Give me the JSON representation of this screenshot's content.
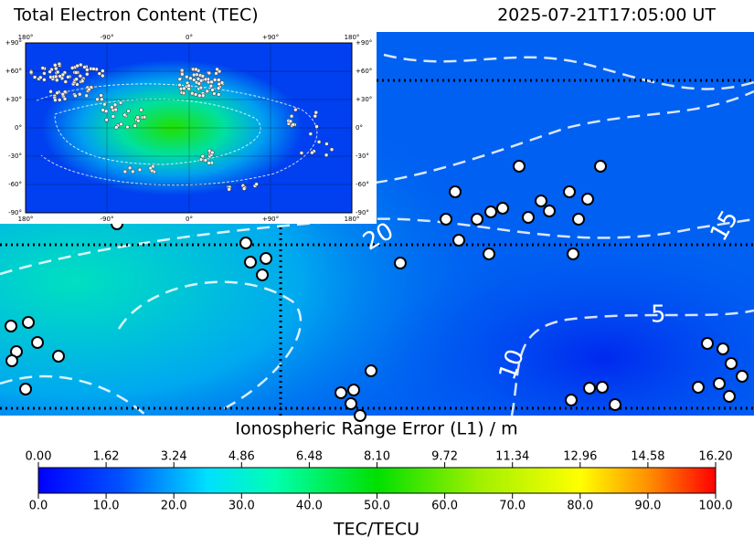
{
  "header": {
    "title": "Total Electron Content (TEC)",
    "timestamp": "2025-07-21T17:05:00 UT"
  },
  "map": {
    "contour_labels": [
      "20",
      "15",
      "5",
      "10"
    ]
  },
  "inset": {
    "x_labels": [
      "180°",
      "-90°",
      "0°",
      "+90°",
      "180°"
    ],
    "y_labels": [
      "+90°",
      "+60°",
      "+30°",
      "0°",
      "-30°",
      "-60°",
      "-90°"
    ]
  },
  "colorbar": {
    "top_label": "Ionospheric Range Error (L1) / m",
    "top_ticks": [
      "0.00",
      "1.62",
      "3.24",
      "4.86",
      "6.48",
      "8.10",
      "9.72",
      "11.34",
      "12.96",
      "14.58",
      "16.20"
    ],
    "bottom_ticks": [
      "0.0",
      "10.0",
      "20.0",
      "30.0",
      "40.0",
      "50.0",
      "60.0",
      "70.0",
      "80.0",
      "90.0",
      "100.0"
    ],
    "bottom_label": "TEC/TECU"
  }
}
